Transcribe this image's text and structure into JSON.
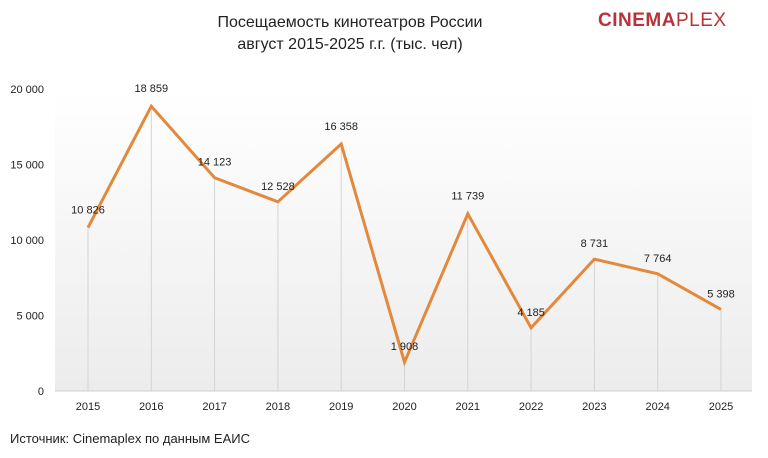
{
  "title_line1": "Посещаемость кинотеатров России",
  "title_line2": "август 2015-2025 г.г. (тыс. чел)",
  "logo": {
    "part1": "CINEMA",
    "part2": "PLEX"
  },
  "source": "Источник: Cinemaplex по данным ЕАИС",
  "chart_data": {
    "type": "line",
    "title": "Посещаемость кинотеатров России август 2015-2025 г.г. (тыс. чел)",
    "categories": [
      "2015",
      "2016",
      "2017",
      "2018",
      "2019",
      "2020",
      "2021",
      "2022",
      "2023",
      "2024",
      "2025"
    ],
    "series": [
      {
        "values": [
          10826,
          18859,
          14123,
          12528,
          16358,
          1908,
          11739,
          4185,
          8731,
          7764,
          5398
        ],
        "labels": [
          "10 826",
          "18 859",
          "14 123",
          "12 528",
          "16 358",
          "1 908",
          "11 739",
          "4 185",
          "8 731",
          "7 764",
          "5 398"
        ],
        "color": "#e3893c"
      }
    ],
    "ylim": [
      0,
      20000
    ],
    "yticks": [
      0,
      5000,
      10000,
      15000,
      20000
    ],
    "ytick_labels": [
      "0",
      "5 000",
      "10 000",
      "15 000",
      "20 000"
    ],
    "grid": "vertical-drop-lines",
    "legend": "none"
  }
}
